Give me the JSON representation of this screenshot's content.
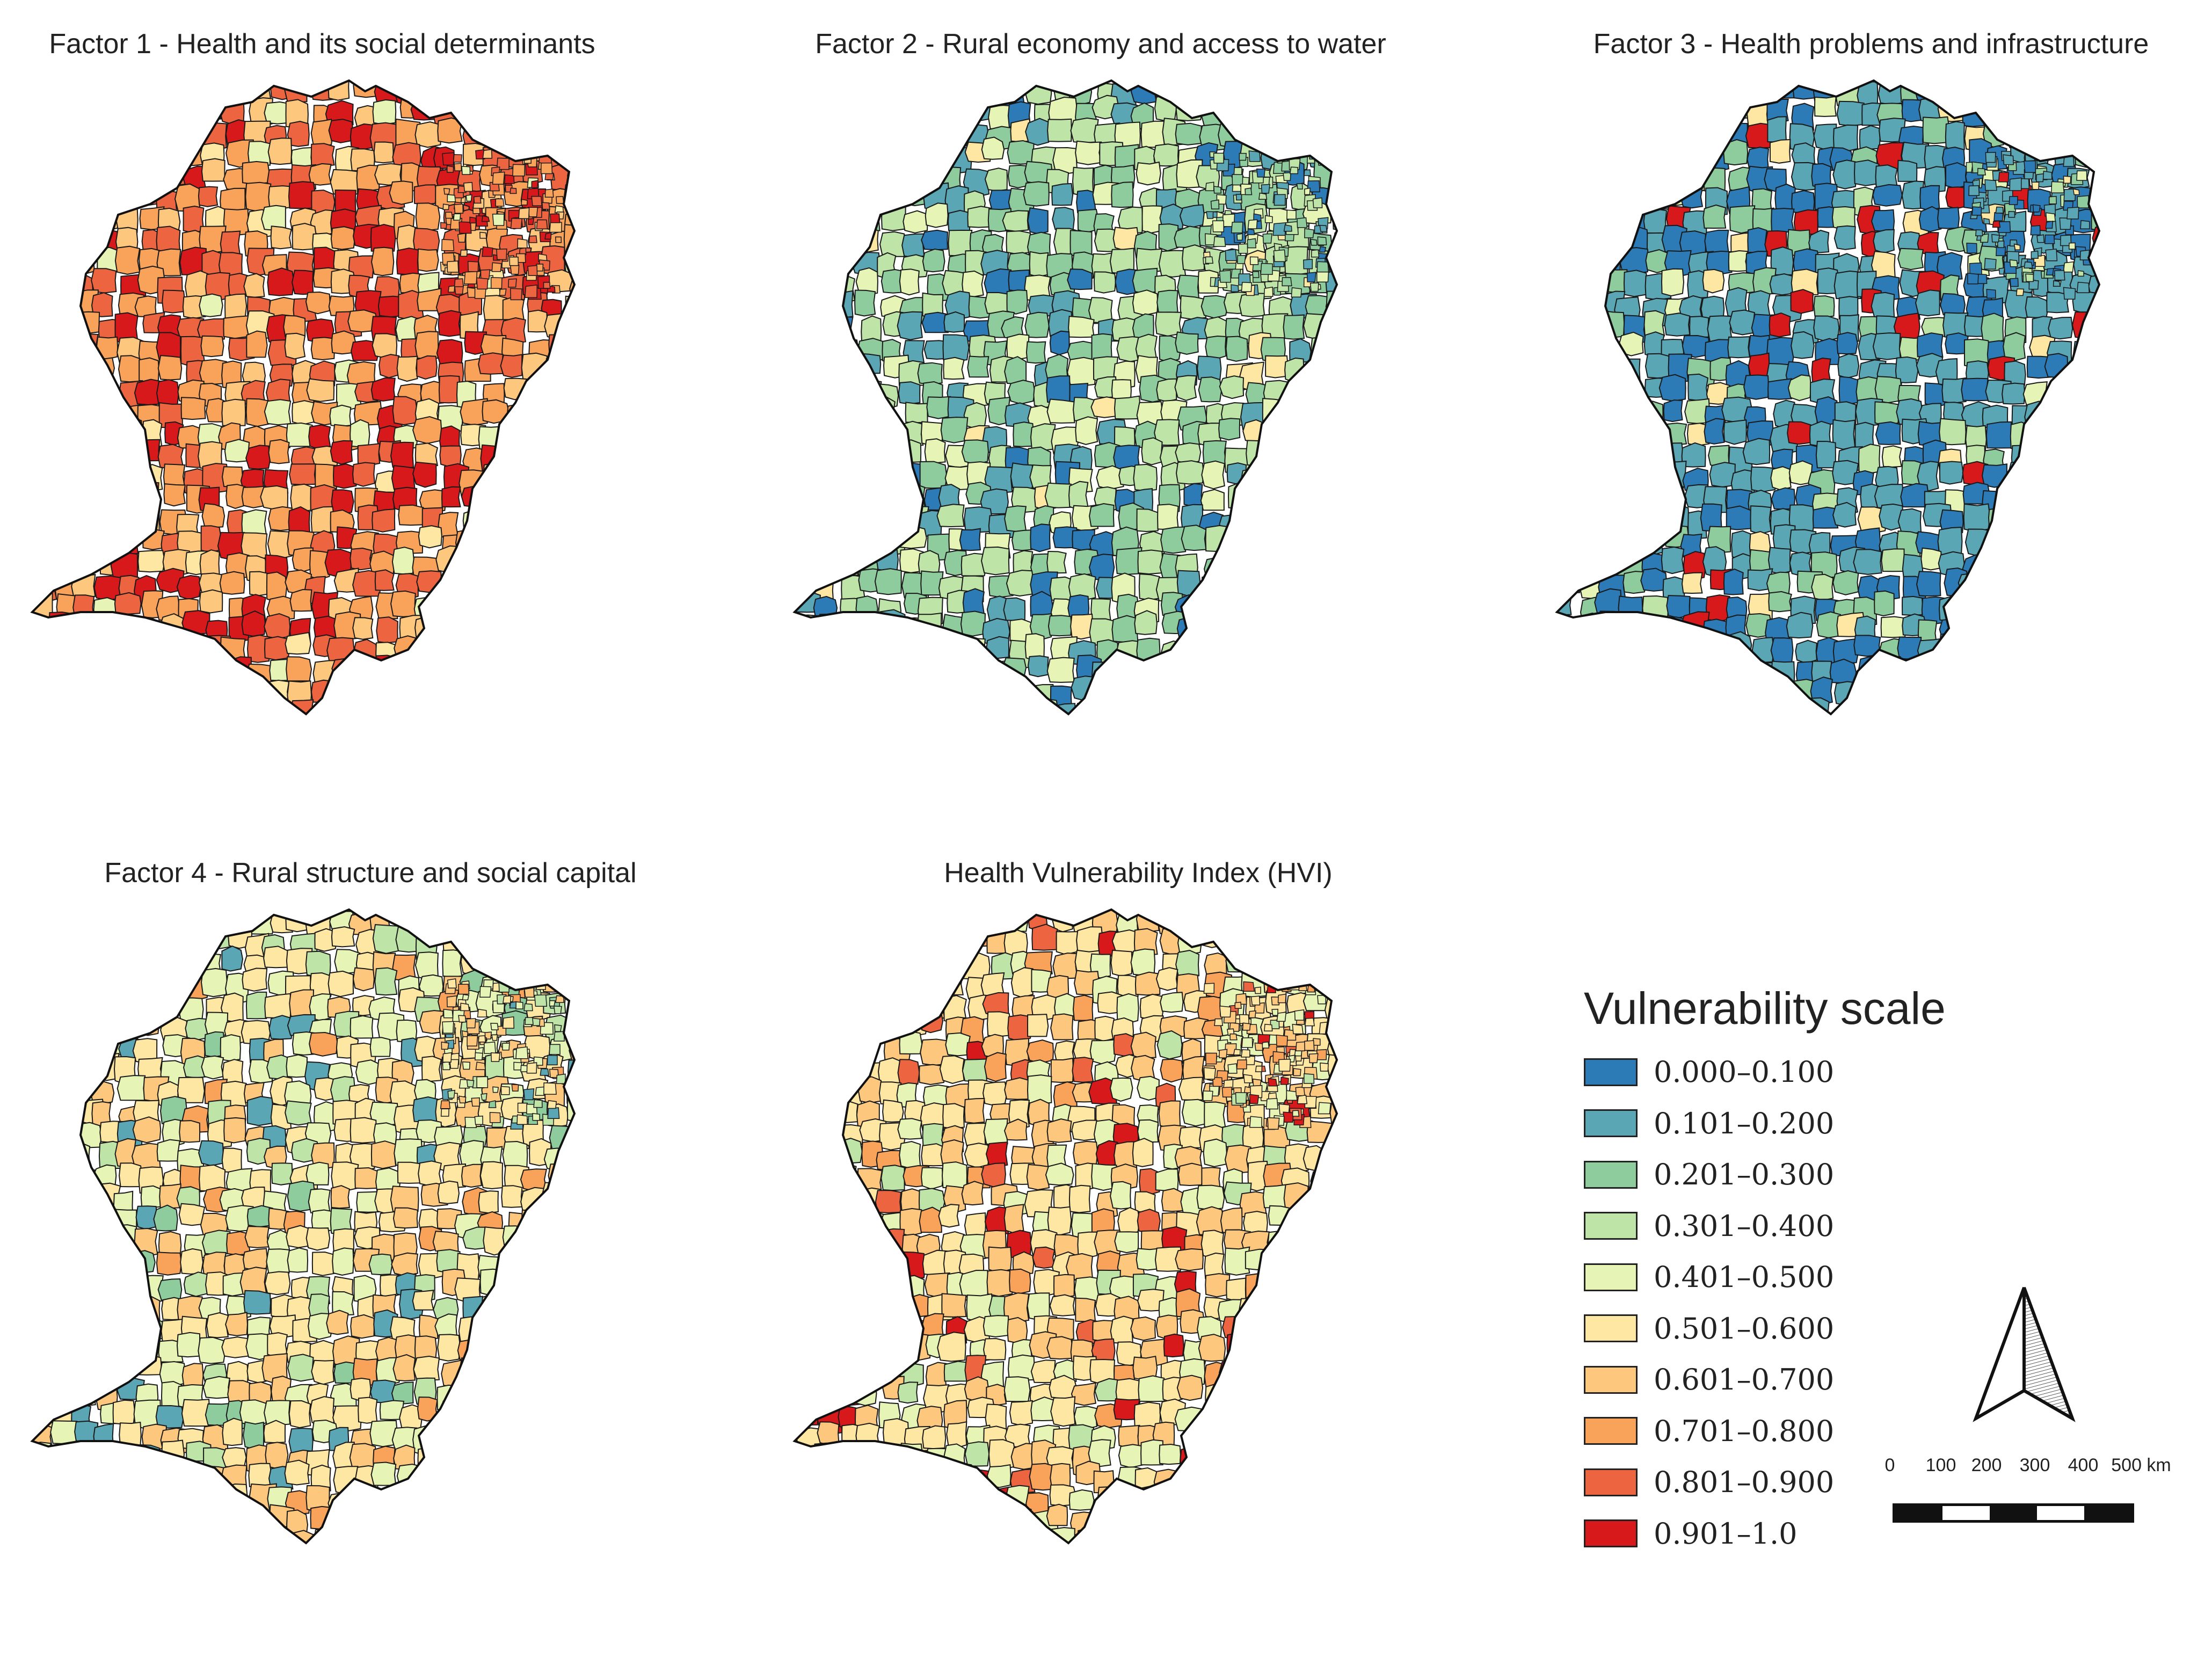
{
  "panels": [
    {
      "title": "Factor 1 - Health and its social determinants",
      "palette": [
        7,
        8,
        7,
        9,
        6,
        8,
        7,
        5,
        8,
        9,
        7,
        6,
        8,
        7,
        4,
        8,
        9,
        7,
        6,
        8
      ],
      "accent": "#d7191c"
    },
    {
      "title": "Factor 2 - Rural economy and access to water",
      "palette": [
        3,
        2,
        4,
        1,
        3,
        2,
        0,
        4,
        3,
        2,
        5,
        3,
        1,
        2,
        4,
        3,
        0,
        2,
        3,
        1
      ],
      "accent": "#2c7bb6"
    },
    {
      "title": "Factor 3 - Health problems and infrastructure",
      "palette": [
        1,
        0,
        1,
        2,
        0,
        1,
        3,
        1,
        0,
        2,
        1,
        4,
        0,
        1,
        2,
        0,
        1,
        5,
        1,
        9
      ],
      "accent": "#2c7bb6"
    },
    {
      "title": "Factor 4 - Rural structure and social capital",
      "palette": [
        5,
        6,
        4,
        5,
        3,
        6,
        4,
        7,
        5,
        4,
        2,
        5,
        6,
        4,
        3,
        5,
        6,
        4,
        1,
        5
      ],
      "accent": "#fee090"
    },
    {
      "title": "Health Vulnerability Index (HVI)",
      "palette": [
        5,
        6,
        4,
        5,
        7,
        6,
        5,
        4,
        8,
        5,
        6,
        9,
        4,
        5,
        7,
        6,
        3,
        5,
        6,
        4
      ],
      "accent": "#fdae61"
    }
  ],
  "legend": {
    "title": "Vulnerability scale",
    "items": [
      {
        "label": "0.000–0.100",
        "color": "#2c7bb6"
      },
      {
        "label": "0.101–0.200",
        "color": "#5aa6b4"
      },
      {
        "label": "0.201–0.300",
        "color": "#8fcc9d"
      },
      {
        "label": "0.301–0.400",
        "color": "#bfe4a8"
      },
      {
        "label": "0.401–0.500",
        "color": "#e6f5b5"
      },
      {
        "label": "0.501–0.600",
        "color": "#fee7a3"
      },
      {
        "label": "0.601–0.700",
        "color": "#fdc77e"
      },
      {
        "label": "0.701–0.800",
        "color": "#f8a25a"
      },
      {
        "label": "0.801–0.900",
        "color": "#ec6440"
      },
      {
        "label": "0.901–1.0",
        "color": "#d7191c"
      }
    ]
  },
  "scalebar": {
    "labels": [
      "0",
      "100",
      "200",
      "300",
      "400",
      "500 km"
    ]
  }
}
